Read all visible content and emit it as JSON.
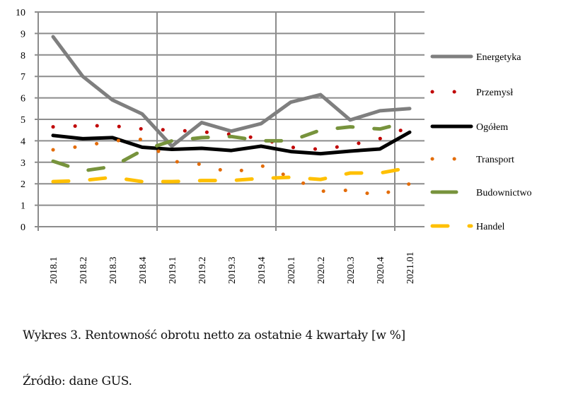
{
  "chart_data": {
    "type": "line",
    "title": "Wykres 3. Rentowność obrotu netto za ostatnie 4 kwartały [w %]",
    "xlabel": "",
    "ylabel": "",
    "ylim": [
      0,
      10
    ],
    "yticks": [
      "0",
      "1",
      "2",
      "3",
      "4",
      "5",
      "6",
      "7",
      "8",
      "9",
      "10"
    ],
    "grid": true,
    "legend_position": "right",
    "categories": [
      "2018.1",
      "2018.2",
      "2018.3",
      "2018.4",
      "2019.1",
      "2019.2",
      "2019.3",
      "2019.4",
      "2020.1",
      "2020.2",
      "2020.3",
      "2020.4",
      "2021.01"
    ],
    "series": [
      {
        "name": "Energetyka",
        "style": "solid",
        "color": "#7f7f7f",
        "values": [
          8.85,
          7.0,
          5.9,
          5.25,
          3.75,
          4.85,
          4.45,
          4.8,
          5.8,
          6.15,
          4.97,
          5.4,
          5.5
        ]
      },
      {
        "name": "Przemysł",
        "style": "dotted",
        "color": "#c00000",
        "values": [
          4.65,
          4.7,
          4.7,
          4.55,
          4.5,
          4.42,
          4.3,
          4.1,
          3.7,
          3.6,
          3.8,
          4.1,
          4.65
        ]
      },
      {
        "name": "Ogółem",
        "style": "solid",
        "color": "#000000",
        "values": [
          4.25,
          4.1,
          4.15,
          3.7,
          3.6,
          3.65,
          3.55,
          3.75,
          3.5,
          3.4,
          3.52,
          3.62,
          4.4
        ]
      },
      {
        "name": "Transport",
        "style": "dotted",
        "color": "#e36c09",
        "values": [
          3.58,
          3.75,
          4.0,
          4.07,
          3.05,
          2.9,
          2.5,
          2.85,
          2.3,
          1.65,
          1.7,
          1.45,
          2.0
        ]
      },
      {
        "name": "Budownictwo",
        "style": "dashed",
        "color": "#77933c",
        "values": [
          3.05,
          2.6,
          2.8,
          3.55,
          4.0,
          4.15,
          4.2,
          4.0,
          4.0,
          4.5,
          4.65,
          4.55,
          4.9
        ]
      },
      {
        "name": "Handel",
        "style": "dashed",
        "color": "#ffc000",
        "values": [
          2.1,
          2.15,
          2.3,
          2.1,
          2.1,
          2.15,
          2.15,
          2.25,
          2.3,
          2.2,
          2.5,
          2.5,
          2.75
        ]
      }
    ]
  },
  "caption": {
    "title": "Wykres 3. Rentowność obrotu netto za ostatnie 4 kwartały [w %]",
    "source": "Źródło: dane GUS."
  }
}
